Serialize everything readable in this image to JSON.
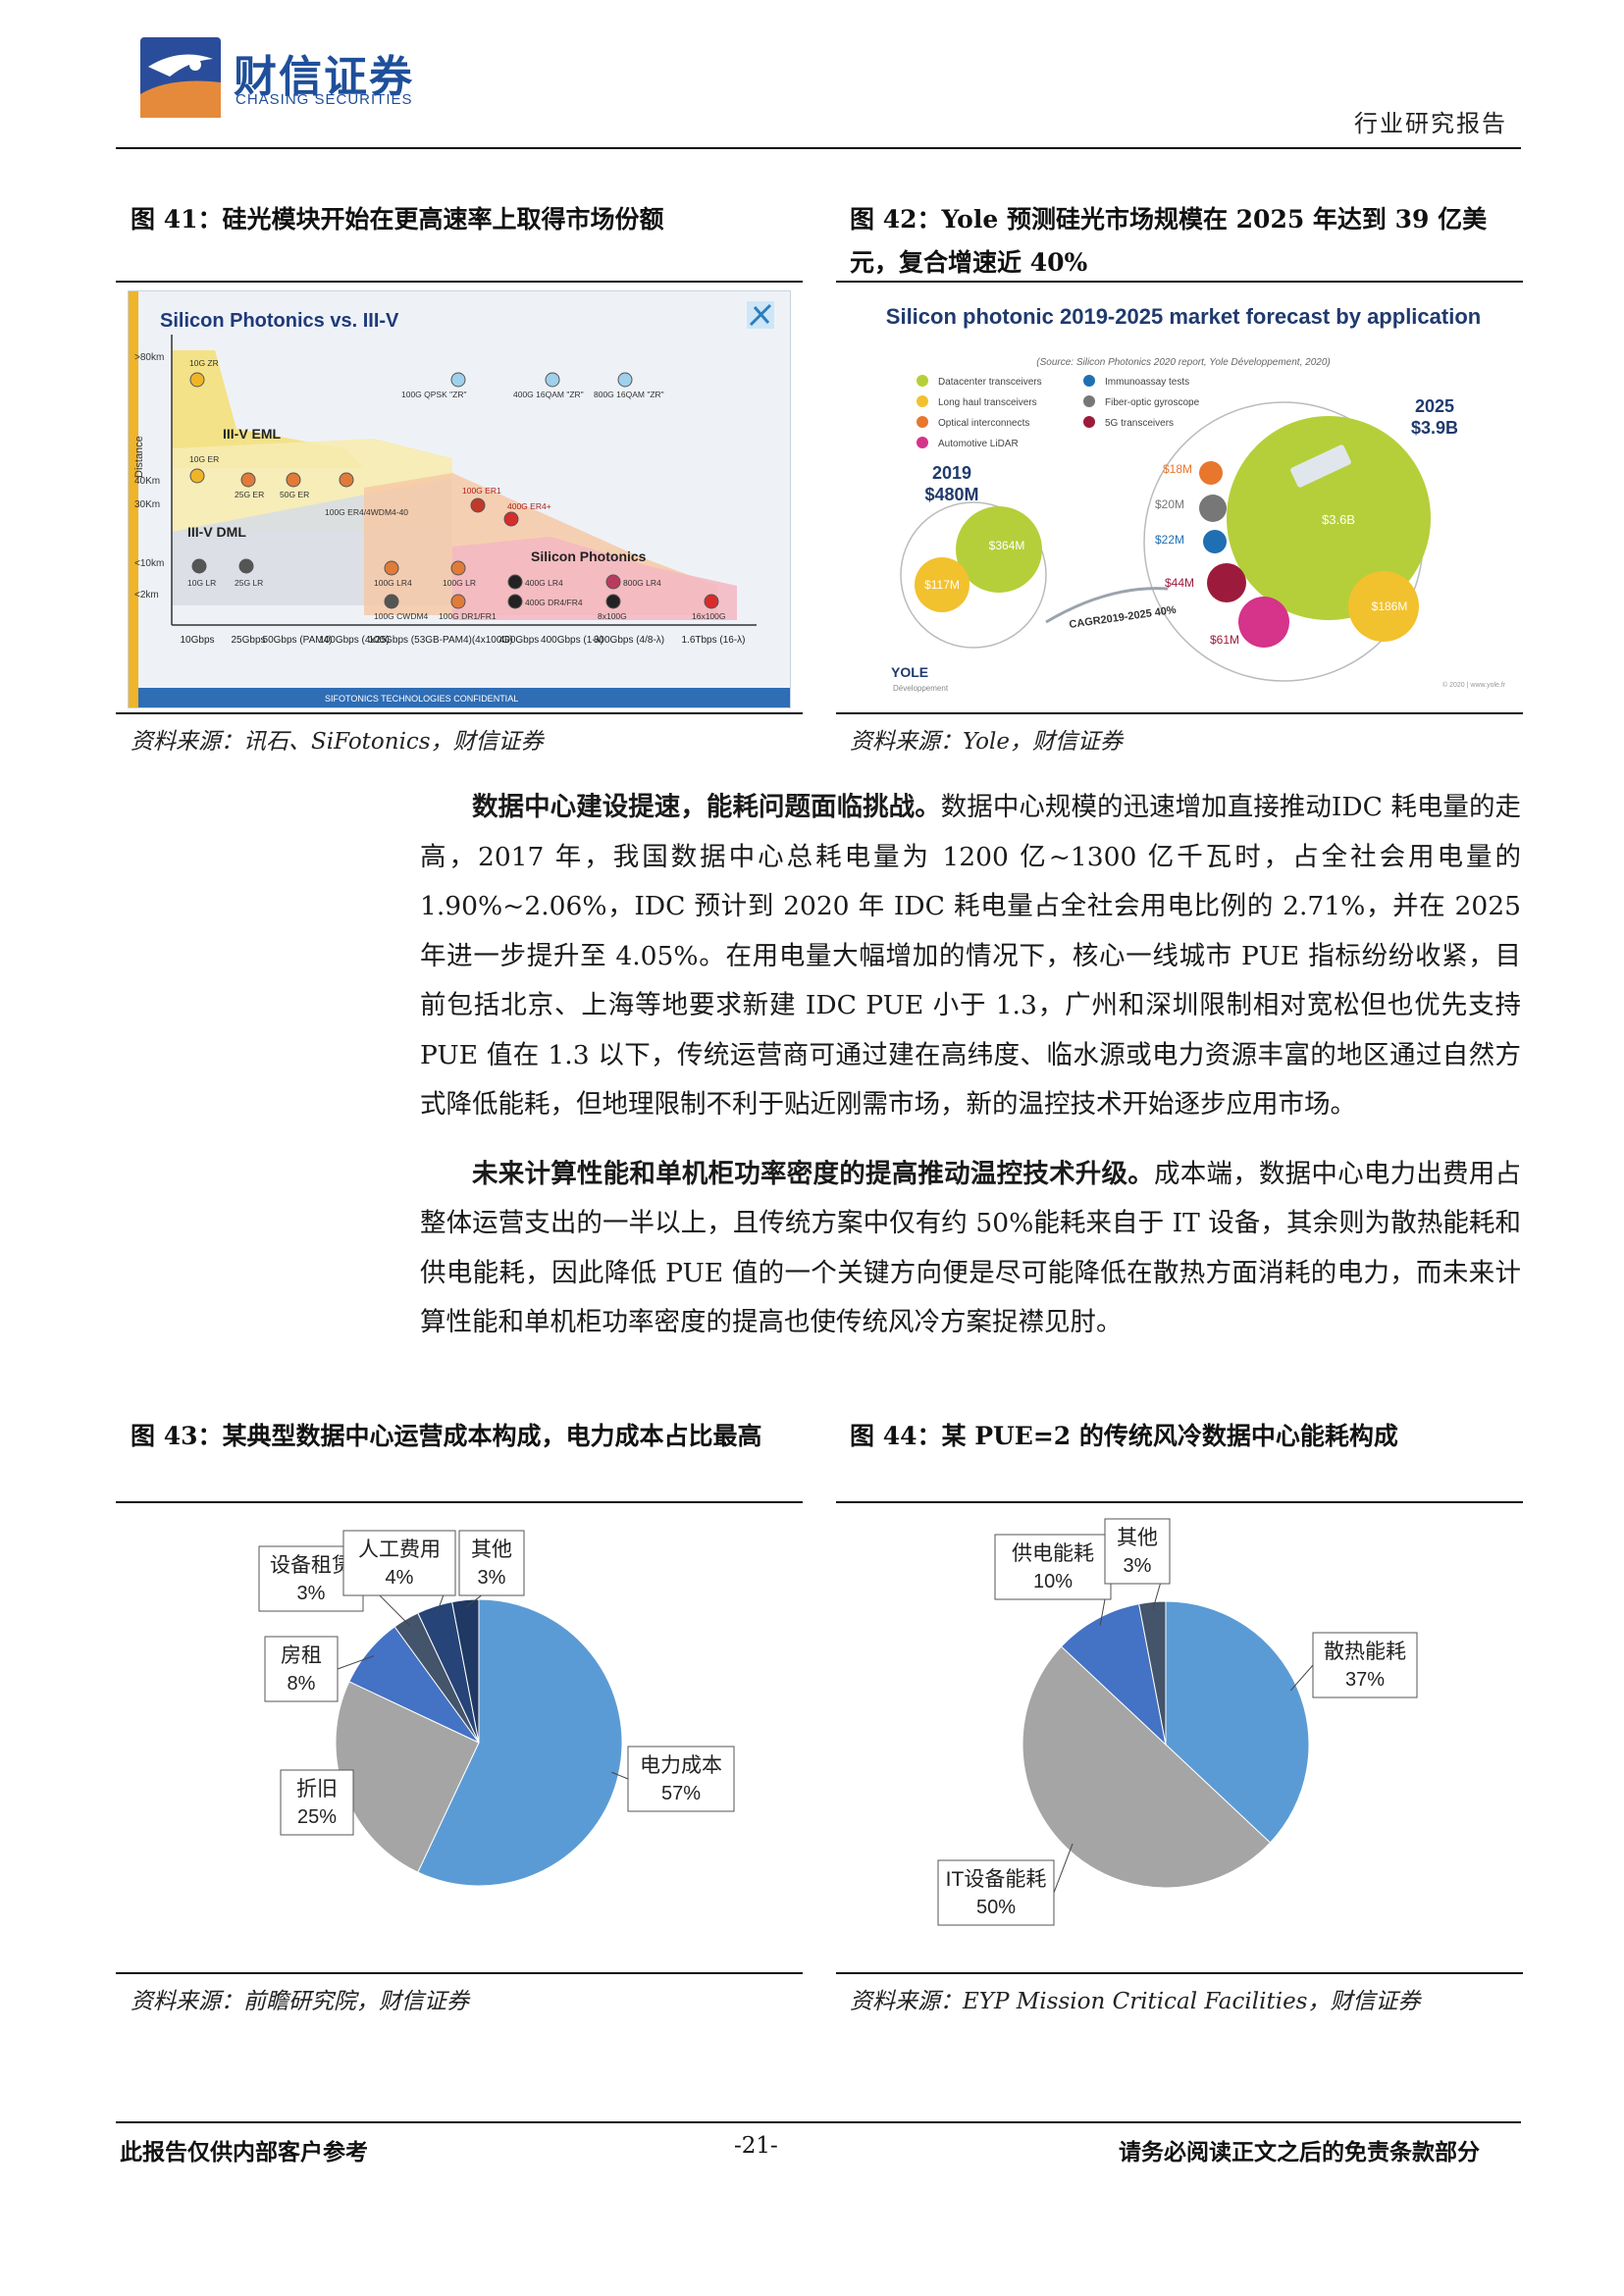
{
  "header": {
    "company_cn": "财信证券",
    "company_en": "CHASING SECURITIES",
    "report_type": "行业研究报告"
  },
  "fig41": {
    "title": "图 41：硅光模块开始在更高速率上取得市场份额",
    "source": "资料来源：讯石、SiFotonics，财信证券",
    "image": {
      "heading": "Silicon Photonics vs. III-V",
      "y_axis": "Distance",
      "y_ticks": [
        ">80km",
        "40Km",
        "30Km",
        "<10km",
        "<2km"
      ],
      "x_ticks": [
        "10Gbps",
        "25Gbps",
        "50Gbps\n(PAM4)",
        "100Gbps\n(4x25)",
        "100Gbps\n(53GB-PAM4)(4x100G)",
        "400Gbps",
        "400Gbps\n(1-λ)",
        "800Gbps\n(4/8-λ)",
        "1.6Tbps\n(16-λ)"
      ],
      "regions": [
        "III-V EML",
        "III-V DML",
        "Silicon Photonics"
      ],
      "points": [
        "10G ZR",
        "100G QPSK \"ZR\"",
        "400G 16QAM \"ZR\"",
        "800G 16QAM \"ZR\"",
        "10G ER",
        "25G ER",
        "50G ER",
        "100G ER4/4WDM4-40",
        "100G ER1",
        "400G ER4+",
        "10G LR",
        "25G LR",
        "100G LR4",
        "100G LR",
        "400G LR4",
        "800G LR4",
        "100G CWDM4",
        "100G DR1/FR1",
        "400G DR4/FR4",
        "8x100G",
        "16x100G"
      ],
      "footer": "SIFOTONICS TECHNOLOGIES CONFIDENTIAL"
    }
  },
  "fig42": {
    "title": "图 42：Yole 预测硅光市场规模在 2025 年达到 39 亿美元，复合增速近 40%",
    "source": "资料来源：Yole，财信证券",
    "image": {
      "heading": "Silicon photonic 2019-2025 market forecast by application",
      "sub": "(Source: Silicon Photonics 2020 report, Yole Développement, 2020)",
      "legend": [
        {
          "label": "Datacenter transceivers",
          "color": "#b5cf3a"
        },
        {
          "label": "Long haul transceivers",
          "color": "#f2c12e"
        },
        {
          "label": "Optical interconnects",
          "color": "#e8772e"
        },
        {
          "label": "Automotive LiDAR",
          "color": "#d6338a"
        },
        {
          "label": "Immunoassay tests",
          "color": "#1f6fb2"
        },
        {
          "label": "Fiber-optic gyroscope",
          "color": "#777777"
        },
        {
          "label": "5G transceivers",
          "color": "#9c1b3c"
        }
      ],
      "year_2019": "2019",
      "total_2019": "$480M",
      "year_2025": "2025",
      "total_2025": "$3.9B",
      "v2019_dc": "$364M",
      "v2019_lh": "$117M",
      "v2025_dc": "$3.6B",
      "v2025_lh": "$186M",
      "v2025_oi": "$18M",
      "v2025_gyro": "$20M",
      "v2025_imm": "$22M",
      "v2025_5g": "$44M",
      "v2025_lidar": "$61M",
      "cagr": "CAGR2019-2025 40%",
      "brand": "YOLE",
      "brand_sub": "Développement",
      "footer": "© 2020 | www.yole.fr"
    }
  },
  "body": {
    "p1_bold": "数据中心建设提速，能耗问题面临挑战。",
    "p1_text": "数据中心规模的迅速增加直接推动IDC 耗电量的走高，2017 年，我国数据中心总耗电量为 1200 亿~1300 亿千瓦时，占全社会用电量的 1.90%~2.06%，IDC 预计到 2020 年 IDC 耗电量占全社会用电比例的 2.71%，并在 2025 年进一步提升至 4.05%。在用电量大幅增加的情况下，核心一线城市 PUE 指标纷纷收紧，目前包括北京、上海等地要求新建 IDC PUE 小于 1.3，广州和深圳限制相对宽松但也优先支持 PUE 值在 1.3 以下，传统运营商可通过建在高纬度、临水源或电力资源丰富的地区通过自然方式降低能耗，但地理限制不利于贴近刚需市场，新的温控技术开始逐步应用市场。",
    "p2_bold": "未来计算性能和单机柜功率密度的提高推动温控技术升级。",
    "p2_text": "成本端，数据中心电力出费用占整体运营支出的一半以上，且传统方案中仅有约 50%能耗来自于 IT 设备，其余则为散热能耗和供电能耗，因此降低 PUE 值的一个关键方向便是尽可能降低在散热方面消耗的电力，而未来计算性能和单机柜功率密度的提高也使传统风冷方案捉襟见肘。"
  },
  "fig43": {
    "title": "图 43：某典型数据中心运营成本构成，电力成本占比最高",
    "source": "资料来源：前瞻研究院，财信证券"
  },
  "fig44": {
    "title": "图 44：某 PUE=2 的传统风冷数据中心能耗构成",
    "source": "资料来源：EYP Mission Critical Facilities，财信证券"
  },
  "chart_data": [
    {
      "type": "pie",
      "title": "某典型数据中心运营成本构成",
      "categories": [
        "电力成本",
        "折旧",
        "房租",
        "设备租赁",
        "人工费用",
        "其他"
      ],
      "values": [
        57,
        25,
        8,
        3,
        4,
        3
      ],
      "labels": [
        "57%",
        "25%",
        "8%",
        "3%",
        "4%",
        "3%"
      ],
      "label_names": [
        "电力成本",
        "折旧",
        "房租",
        "设备租赁",
        "人工费用",
        "其他"
      ],
      "colors": [
        "#5b9bd5",
        "#a5a5a5",
        "#4472c4",
        "#44546a",
        "#264478",
        "#1f3864"
      ]
    },
    {
      "type": "pie",
      "title": "某 PUE=2 的传统风冷数据中心能耗构成",
      "categories": [
        "散热能耗",
        "IT设备能耗",
        "供电能耗",
        "其他"
      ],
      "values": [
        37,
        50,
        10,
        3
      ],
      "labels": [
        "37%",
        "50%",
        "10%",
        "3%"
      ],
      "label_names": [
        "散热能耗",
        "IT设备能耗",
        "供电能耗",
        "其他"
      ],
      "colors": [
        "#5b9bd5",
        "#a5a5a5",
        "#4472c4",
        "#44546a"
      ]
    }
  ],
  "footer": {
    "left": "此报告仅供内部客户参考",
    "page": "-21-",
    "right": "请务必阅读正文之后的免责条款部分"
  }
}
